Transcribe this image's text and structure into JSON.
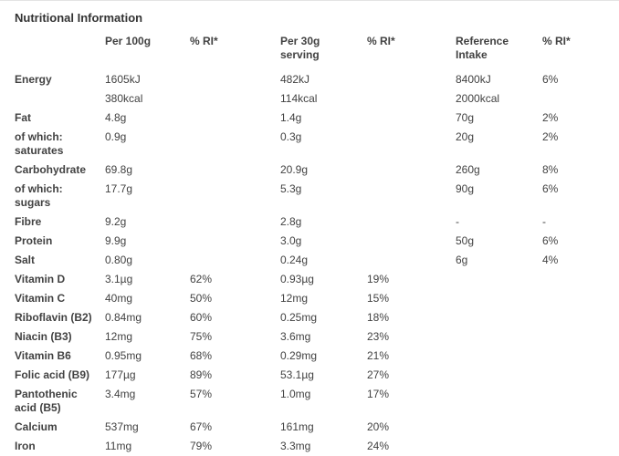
{
  "title": "Nutritional Information",
  "colors": {
    "text": "#424242",
    "title_text": "#333333",
    "top_border": "#e4e4e4",
    "background": "#ffffff"
  },
  "table": {
    "headers": [
      "",
      "Per 100g",
      "% RI*",
      "Per 30g serving",
      "% RI*",
      "Reference Intake",
      "% RI*"
    ],
    "rows": [
      [
        "Energy",
        "1605kJ",
        "",
        "482kJ",
        "",
        "8400kJ",
        "6%"
      ],
      [
        "",
        "380kcal",
        "",
        "114kcal",
        "",
        "2000kcal",
        ""
      ],
      [
        "Fat",
        "4.8g",
        "",
        "1.4g",
        "",
        "70g",
        "2%"
      ],
      [
        "of which: saturates",
        "0.9g",
        "",
        "0.3g",
        "",
        "20g",
        "2%"
      ],
      [
        "Carbohydrate",
        "69.8g",
        "",
        "20.9g",
        "",
        "260g",
        "8%"
      ],
      [
        "of which: sugars",
        "17.7g",
        "",
        "5.3g",
        "",
        "90g",
        "6%"
      ],
      [
        "Fibre",
        "9.2g",
        "",
        "2.8g",
        "",
        "-",
        "-"
      ],
      [
        "Protein",
        "9.9g",
        "",
        "3.0g",
        "",
        "50g",
        "6%"
      ],
      [
        "Salt",
        "0.80g",
        "",
        "0.24g",
        "",
        "6g",
        "4%"
      ],
      [
        "Vitamin D",
        "3.1µg",
        "62%",
        "0.93µg",
        "19%",
        "",
        ""
      ],
      [
        "Vitamin C",
        "40mg",
        "50%",
        "12mg",
        "15%",
        "",
        ""
      ],
      [
        "Riboflavin (B2)",
        "0.84mg",
        "60%",
        "0.25mg",
        "18%",
        "",
        ""
      ],
      [
        "Niacin (B3)",
        "12mg",
        "75%",
        "3.6mg",
        "23%",
        "",
        ""
      ],
      [
        "Vitamin B6",
        "0.95mg",
        "68%",
        "0.29mg",
        "21%",
        "",
        ""
      ],
      [
        "Folic acid (B9)",
        "177µg",
        "89%",
        "53.1µg",
        "27%",
        "",
        ""
      ],
      [
        "Pantothenic acid (B5)",
        "3.4mg",
        "57%",
        "1.0mg",
        "17%",
        "",
        ""
      ],
      [
        "Calcium",
        "537mg",
        "67%",
        "161mg",
        "20%",
        "",
        ""
      ],
      [
        "Iron",
        "11mg",
        "79%",
        "3.3mg",
        "24%",
        "",
        ""
      ]
    ]
  }
}
